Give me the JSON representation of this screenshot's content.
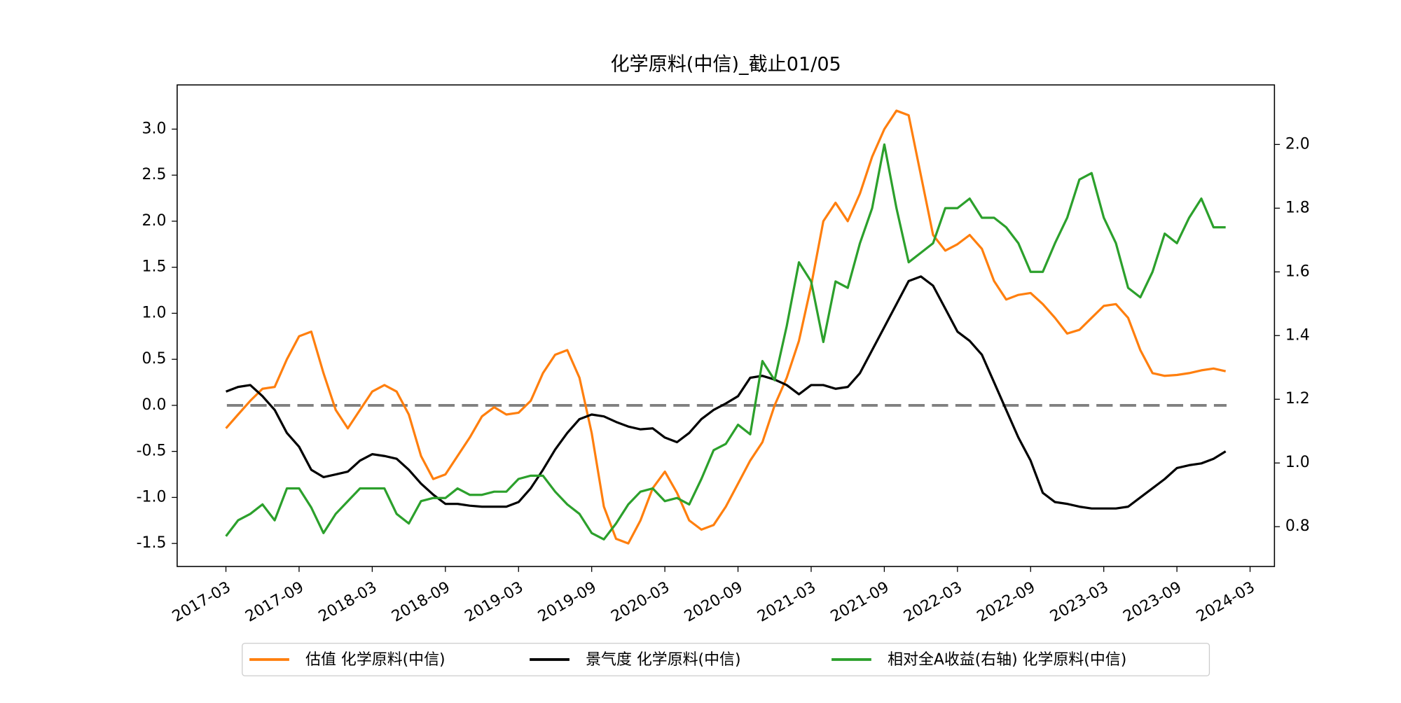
{
  "chart_data": {
    "type": "line",
    "title": "化学原料(中信)_截止01/05",
    "x": [
      "2017-03",
      "2017-04",
      "2017-05",
      "2017-06",
      "2017-07",
      "2017-08",
      "2017-09",
      "2017-10",
      "2017-11",
      "2017-12",
      "2018-01",
      "2018-02",
      "2018-03",
      "2018-04",
      "2018-05",
      "2018-06",
      "2018-07",
      "2018-08",
      "2018-09",
      "2018-10",
      "2018-11",
      "2018-12",
      "2019-01",
      "2019-02",
      "2019-03",
      "2019-04",
      "2019-05",
      "2019-06",
      "2019-07",
      "2019-08",
      "2019-09",
      "2019-10",
      "2019-11",
      "2019-12",
      "2020-01",
      "2020-02",
      "2020-03",
      "2020-04",
      "2020-05",
      "2020-06",
      "2020-07",
      "2020-08",
      "2020-09",
      "2020-10",
      "2020-11",
      "2020-12",
      "2021-01",
      "2021-02",
      "2021-03",
      "2021-04",
      "2021-05",
      "2021-06",
      "2021-07",
      "2021-08",
      "2021-09",
      "2021-10",
      "2021-11",
      "2021-12",
      "2022-01",
      "2022-02",
      "2022-03",
      "2022-04",
      "2022-05",
      "2022-06",
      "2022-07",
      "2022-08",
      "2022-09",
      "2022-10",
      "2022-11",
      "2022-12",
      "2023-01",
      "2023-02",
      "2023-03",
      "2023-04",
      "2023-05",
      "2023-06",
      "2023-07",
      "2023-08",
      "2023-09",
      "2023-10",
      "2023-11",
      "2023-12",
      "2024-01"
    ],
    "series": [
      {
        "name": "估值 化学原料(中信)",
        "color": "#ff7f0e",
        "axis": "y",
        "values": [
          -0.25,
          -0.1,
          0.05,
          0.18,
          0.2,
          0.5,
          0.75,
          0.8,
          0.35,
          -0.05,
          -0.25,
          -0.05,
          0.15,
          0.22,
          0.15,
          -0.1,
          -0.55,
          -0.8,
          -0.75,
          -0.55,
          -0.35,
          -0.12,
          -0.02,
          -0.1,
          -0.08,
          0.05,
          0.35,
          0.55,
          0.6,
          0.3,
          -0.3,
          -1.1,
          -1.45,
          -1.5,
          -1.25,
          -0.9,
          -0.72,
          -0.95,
          -1.25,
          -1.35,
          -1.3,
          -1.1,
          -0.85,
          -0.6,
          -0.4,
          0.0,
          0.3,
          0.7,
          1.3,
          2.0,
          2.2,
          2.0,
          2.3,
          2.7,
          3.0,
          3.2,
          3.15,
          2.5,
          1.85,
          1.68,
          1.75,
          1.85,
          1.7,
          1.35,
          1.15,
          1.2,
          1.22,
          1.1,
          0.95,
          0.78,
          0.82,
          0.95,
          1.08,
          1.1,
          0.95,
          0.6,
          0.35,
          0.32,
          0.33,
          0.35,
          0.38,
          0.4,
          0.37
        ]
      },
      {
        "name": "景气度 化学原料(中信)",
        "color": "#000000",
        "axis": "y",
        "values": [
          0.15,
          0.2,
          0.22,
          0.1,
          -0.05,
          -0.3,
          -0.45,
          -0.7,
          -0.78,
          -0.75,
          -0.72,
          -0.6,
          -0.53,
          -0.55,
          -0.58,
          -0.7,
          -0.85,
          -0.97,
          -1.07,
          -1.07,
          -1.09,
          -1.1,
          -1.1,
          -1.1,
          -1.05,
          -0.9,
          -0.7,
          -0.48,
          -0.3,
          -0.15,
          -0.1,
          -0.12,
          -0.18,
          -0.23,
          -0.26,
          -0.25,
          -0.35,
          -0.4,
          -0.3,
          -0.15,
          -0.05,
          0.02,
          0.1,
          0.3,
          0.32,
          0.28,
          0.22,
          0.12,
          0.22,
          0.22,
          0.18,
          0.2,
          0.35,
          0.6,
          0.85,
          1.1,
          1.35,
          1.4,
          1.3,
          1.05,
          0.8,
          0.7,
          0.55,
          0.25,
          -0.05,
          -0.35,
          -0.6,
          -0.95,
          -1.05,
          -1.07,
          -1.1,
          -1.12,
          -1.12,
          -1.12,
          -1.1,
          -1.0,
          -0.9,
          -0.8,
          -0.68,
          -0.65,
          -0.63,
          -0.58,
          -0.5
        ]
      },
      {
        "name": "相对全A收益(右轴) 化学原料(中信)",
        "color": "#2ca02c",
        "axis": "y2",
        "values": [
          0.77,
          0.82,
          0.84,
          0.87,
          0.82,
          0.92,
          0.92,
          0.86,
          0.78,
          0.84,
          0.88,
          0.92,
          0.92,
          0.92,
          0.84,
          0.81,
          0.88,
          0.89,
          0.89,
          0.92,
          0.9,
          0.9,
          0.91,
          0.91,
          0.95,
          0.96,
          0.96,
          0.91,
          0.87,
          0.84,
          0.78,
          0.76,
          0.81,
          0.87,
          0.91,
          0.92,
          0.88,
          0.89,
          0.87,
          0.95,
          1.04,
          1.06,
          1.12,
          1.09,
          1.32,
          1.26,
          1.43,
          1.63,
          1.57,
          1.38,
          1.57,
          1.55,
          1.69,
          1.8,
          2.0,
          1.8,
          1.63,
          1.66,
          1.69,
          1.8,
          1.8,
          1.83,
          1.77,
          1.77,
          1.74,
          1.69,
          1.6,
          1.6,
          1.69,
          1.77,
          1.89,
          1.91,
          1.77,
          1.69,
          1.55,
          1.52,
          1.6,
          1.72,
          1.69,
          1.77,
          1.83,
          1.74,
          1.74
        ]
      }
    ],
    "xlim": [
      "2016-11",
      "2024-05"
    ],
    "xticks": [
      "2017-03",
      "2017-09",
      "2018-03",
      "2018-09",
      "2019-03",
      "2019-09",
      "2020-03",
      "2020-09",
      "2021-03",
      "2021-09",
      "2022-03",
      "2022-09",
      "2023-03",
      "2023-09",
      "2024-03"
    ],
    "ylim": [
      -1.75,
      3.48
    ],
    "yticks": [
      -1.5,
      {
        "value": -1,
        "label": "-1.0"
      },
      -0.5,
      {
        "value": 0,
        "label": "0.0"
      },
      0.5,
      {
        "value": 1,
        "label": "1.0"
      },
      1.5,
      {
        "value": 2,
        "label": "2.0"
      },
      2.5,
      {
        "value": 3,
        "label": "3.0"
      }
    ],
    "y2lim": [
      0.675,
      2.187
    ],
    "y2ticks": [
      0.8,
      {
        "value": 1,
        "label": "1.0"
      },
      1.2,
      1.4,
      1.6,
      1.8,
      {
        "value": 2,
        "label": "2.0"
      }
    ],
    "hline": {
      "value": 0,
      "color": "#808080"
    },
    "legend": "bottom"
  }
}
